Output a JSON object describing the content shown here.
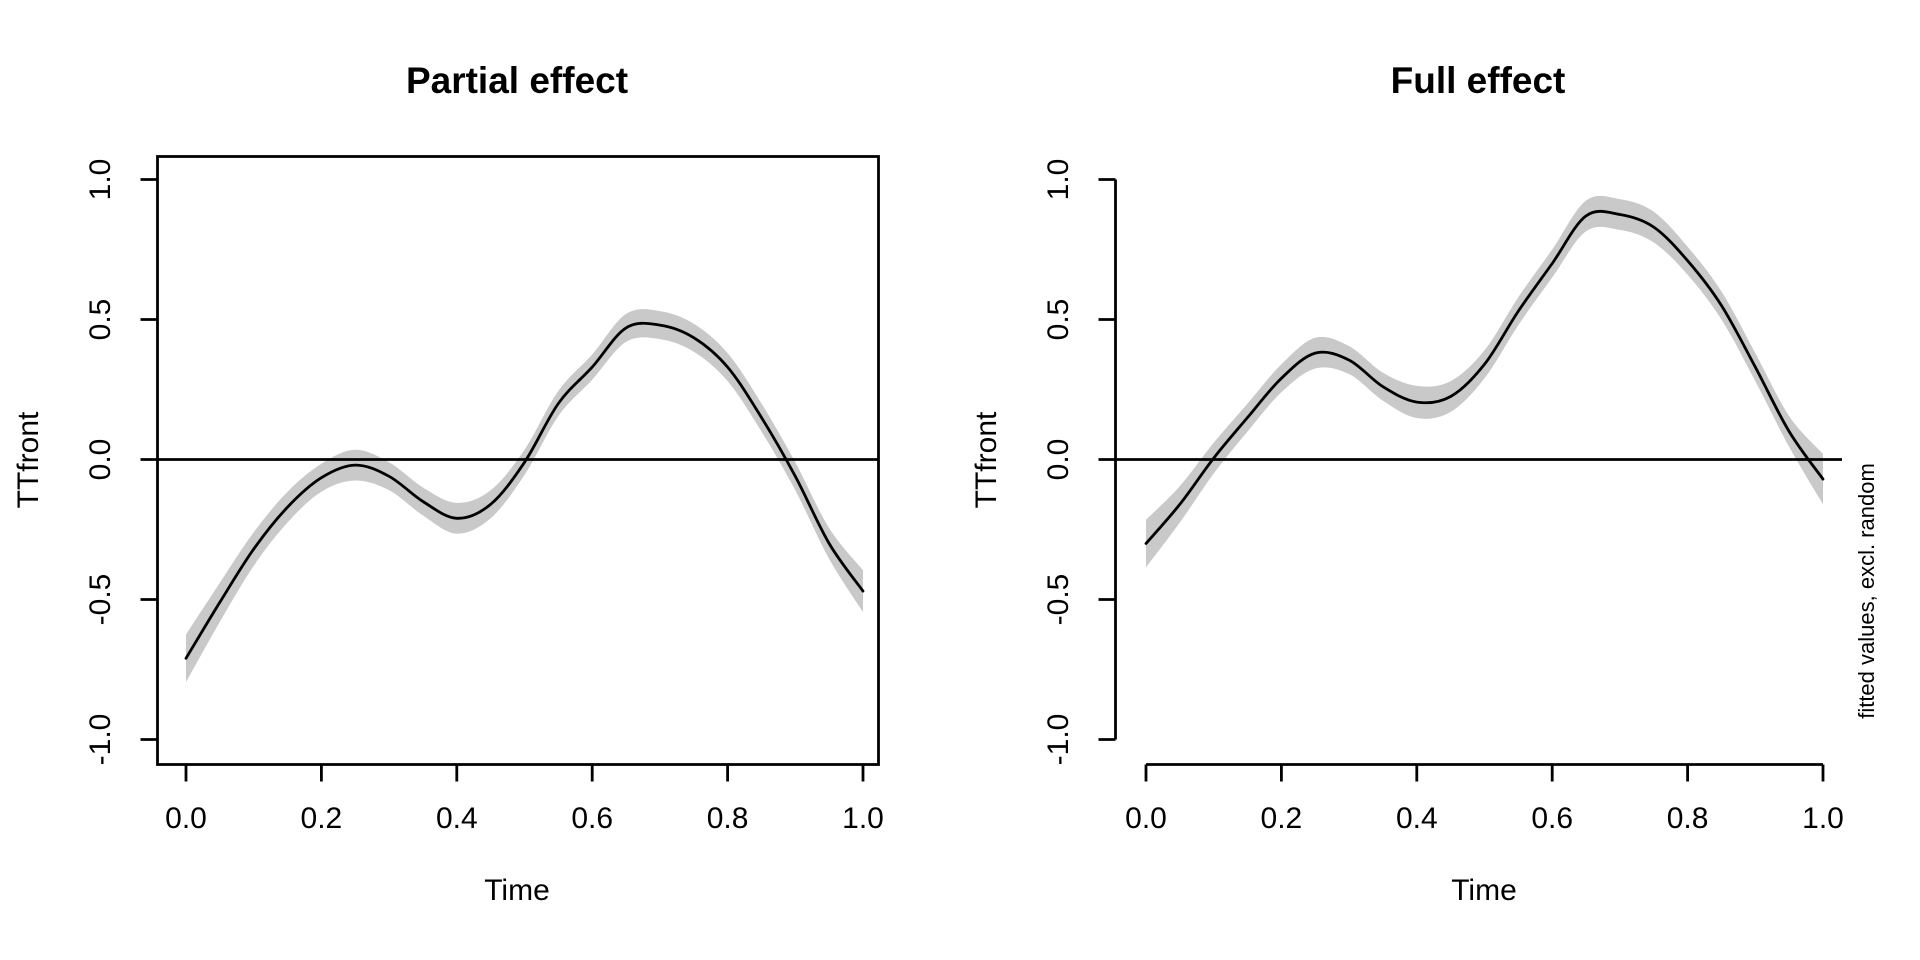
{
  "figure": {
    "background": "#ffffff",
    "line_color": "#000000",
    "axis_color": "#000000",
    "band_color": "#c9c9c9",
    "side_note": {
      "text": "fitted values, excl. random",
      "color": "#6e6e6e"
    }
  },
  "chart_data": [
    {
      "type": "line",
      "title": "Partial effect",
      "xlabel": "Time",
      "ylabel": "TTfront",
      "xlim": [
        0,
        1
      ],
      "ylim": [
        -1.08,
        1.08
      ],
      "frame": "box",
      "grid": false,
      "zero_line": true,
      "xticks": [
        0.0,
        0.2,
        0.4,
        0.6,
        0.8,
        1.0
      ],
      "xtick_labels": [
        "0.0",
        "0.2",
        "0.4",
        "0.6",
        "0.8",
        "1.0"
      ],
      "yticks": [
        -1.0,
        -0.5,
        0.0,
        0.5,
        1.0
      ],
      "ytick_labels": [
        "-1.0",
        "-0.5",
        "0.0",
        "0.5",
        "1.0"
      ],
      "x": [
        0.0,
        0.05,
        0.1,
        0.15,
        0.2,
        0.25,
        0.3,
        0.35,
        0.4,
        0.45,
        0.5,
        0.55,
        0.6,
        0.65,
        0.7,
        0.75,
        0.8,
        0.85,
        0.9,
        0.95,
        1.0
      ],
      "series": [
        {
          "name": "fit",
          "values": [
            -0.71,
            -0.51,
            -0.32,
            -0.17,
            -0.065,
            -0.02,
            -0.06,
            -0.15,
            -0.21,
            -0.16,
            -0.01,
            0.2,
            0.33,
            0.47,
            0.48,
            0.435,
            0.33,
            0.15,
            -0.06,
            -0.3,
            -0.47
          ]
        },
        {
          "name": "ci_upper",
          "values": [
            -0.625,
            -0.44,
            -0.26,
            -0.115,
            -0.015,
            0.035,
            -0.01,
            -0.1,
            -0.155,
            -0.11,
            0.035,
            0.245,
            0.375,
            0.52,
            0.53,
            0.485,
            0.38,
            0.2,
            -0.01,
            -0.245,
            -0.395
          ]
        },
        {
          "name": "ci_lower",
          "values": [
            -0.795,
            -0.58,
            -0.38,
            -0.225,
            -0.115,
            -0.075,
            -0.11,
            -0.2,
            -0.265,
            -0.21,
            -0.055,
            0.155,
            0.285,
            0.42,
            0.43,
            0.385,
            0.28,
            0.1,
            -0.11,
            -0.355,
            -0.545
          ]
        }
      ]
    },
    {
      "type": "line",
      "title": "Full effect",
      "xlabel": "Time",
      "ylabel": "TTfront",
      "xlim": [
        0,
        1
      ],
      "ylim": [
        -1.08,
        1.08
      ],
      "frame": "axes",
      "grid": false,
      "zero_line": true,
      "xticks": [
        0.0,
        0.2,
        0.4,
        0.6,
        0.8,
        1.0
      ],
      "xtick_labels": [
        "0.0",
        "0.2",
        "0.4",
        "0.6",
        "0.8",
        "1.0"
      ],
      "yticks": [
        -1.0,
        -0.5,
        0.0,
        0.5,
        1.0
      ],
      "ytick_labels": [
        "-1.0",
        "-0.5",
        "0.0",
        "0.5",
        "1.0"
      ],
      "x": [
        0.0,
        0.05,
        0.1,
        0.15,
        0.2,
        0.25,
        0.3,
        0.35,
        0.4,
        0.45,
        0.5,
        0.55,
        0.6,
        0.65,
        0.7,
        0.75,
        0.8,
        0.85,
        0.9,
        0.95,
        1.0
      ],
      "series": [
        {
          "name": "fit",
          "values": [
            -0.3,
            -0.16,
            0.005,
            0.15,
            0.29,
            0.38,
            0.355,
            0.26,
            0.205,
            0.225,
            0.34,
            0.53,
            0.7,
            0.87,
            0.875,
            0.83,
            0.71,
            0.55,
            0.33,
            0.1,
            -0.07
          ]
        },
        {
          "name": "ci_upper",
          "values": [
            -0.215,
            -0.095,
            0.06,
            0.2,
            0.34,
            0.435,
            0.405,
            0.31,
            0.263,
            0.28,
            0.39,
            0.58,
            0.75,
            0.925,
            0.93,
            0.885,
            0.76,
            0.6,
            0.38,
            0.155,
            0.02
          ]
        },
        {
          "name": "ci_lower",
          "values": [
            -0.385,
            -0.225,
            -0.05,
            0.1,
            0.24,
            0.325,
            0.305,
            0.21,
            0.148,
            0.17,
            0.29,
            0.48,
            0.65,
            0.815,
            0.82,
            0.775,
            0.66,
            0.5,
            0.28,
            0.045,
            -0.16
          ]
        }
      ]
    }
  ]
}
